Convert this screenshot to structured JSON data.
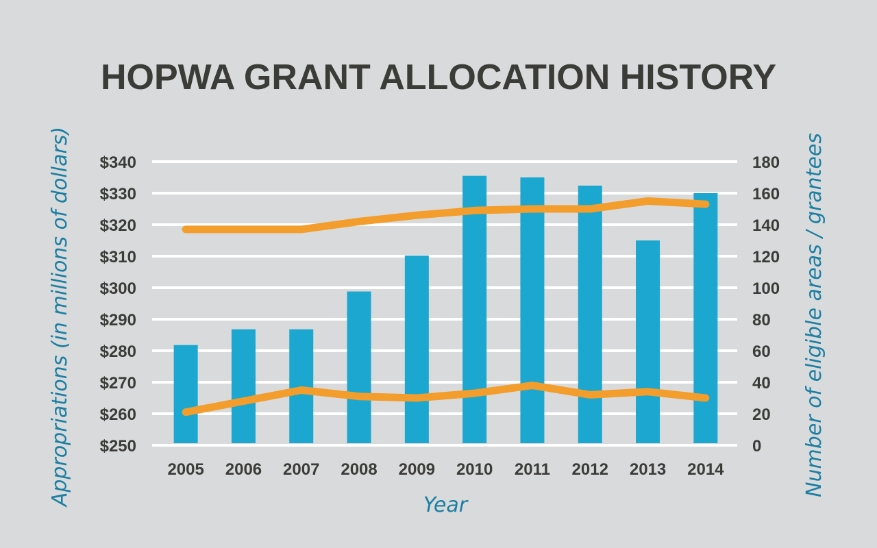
{
  "colors": {
    "background": "#d9dadb",
    "bar": "#1ba7cf",
    "line": "#f29d2c",
    "text": "#3b3b38",
    "axis_label": "#1b7fa3",
    "grid": "#ffffff"
  },
  "chart_data": {
    "type": "bar",
    "title": "HOPWA GRANT ALLOCATION HISTORY",
    "xlabel": "Year",
    "ylabel": "Appropriations (in millions of dollars)",
    "y2label": "Number of eligible areas / grantees",
    "categories": [
      "2005",
      "2006",
      "2007",
      "2008",
      "2009",
      "2010",
      "2011",
      "2012",
      "2013",
      "2014"
    ],
    "ylim": [
      250,
      340
    ],
    "y_ticks": [
      "$250",
      "$260",
      "$270",
      "$280",
      "$290",
      "$300",
      "$310",
      "$320",
      "$330",
      "$340"
    ],
    "y2lim": [
      0,
      180
    ],
    "y2_ticks": [
      "0",
      "20",
      "40",
      "60",
      "80",
      "100",
      "120",
      "140",
      "160",
      "180"
    ],
    "grid": true,
    "series": [
      {
        "type": "bar",
        "axis": "left",
        "values": [
          281.8,
          286.8,
          286.8,
          298.8,
          310.2,
          335.5,
          335.0,
          332.4,
          315.0,
          330.0
        ]
      },
      {
        "type": "line",
        "axis": "right",
        "values": [
          137,
          137,
          137,
          142,
          146,
          149,
          150,
          150,
          155,
          153
        ]
      },
      {
        "type": "line",
        "axis": "right",
        "values": [
          21,
          28,
          35,
          31,
          30,
          33,
          38,
          32,
          34,
          30
        ]
      }
    ]
  }
}
